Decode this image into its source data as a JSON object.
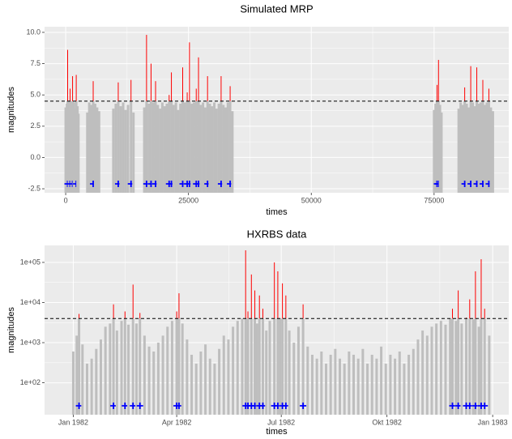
{
  "chart_data": [
    {
      "type": "bar",
      "title": "Simulated MRP",
      "x_label": "times",
      "y_label": "magnitudes",
      "x": [
        0,
        250,
        400,
        650,
        900,
        1150,
        1400,
        1650,
        1900,
        2150,
        2400,
        2600,
        4400,
        4800,
        5200,
        5600,
        6000,
        6400,
        6800,
        9700,
        10200,
        10700,
        11200,
        11700,
        12200,
        12700,
        13300,
        13800,
        16000,
        16460,
        16920,
        17380,
        17840,
        18300,
        18760,
        19220,
        19680,
        20140,
        20600,
        21060,
        21520,
        21980,
        22440,
        22900,
        23360,
        23820,
        24280,
        24740,
        25200,
        25660,
        26120,
        26580,
        27040,
        27500,
        27960,
        28420,
        28880,
        29340,
        29800,
        30260,
        30720,
        31180,
        31640,
        32100,
        32560,
        33020,
        33480,
        33940,
        75000,
        75300,
        75600,
        75900,
        76200,
        76500,
        80000,
        80410,
        80820,
        81230,
        81640,
        82050,
        82460,
        82870,
        83280,
        83690,
        84100,
        84510,
        84920,
        85330,
        85740,
        86150,
        86560,
        86970
      ],
      "values": [
        4.0,
        4.3,
        8.6,
        3.8,
        5.5,
        4.2,
        6.5,
        4.4,
        3.9,
        6.6,
        4.1,
        3.5,
        3.6,
        4.4,
        4.2,
        6.1,
        4.3,
        4.0,
        3.7,
        3.9,
        4.3,
        6.0,
        4.1,
        4.4,
        3.8,
        4.2,
        6.2,
        3.6,
        4.0,
        9.8,
        4.3,
        7.5,
        4.4,
        6.1,
        4.2,
        3.9,
        4.4,
        4.1,
        4.3,
        5.0,
        6.8,
        4.2,
        4.4,
        3.8,
        4.3,
        7.2,
        4.4,
        5.2,
        9.2,
        4.3,
        4.4,
        5.5,
        8.0,
        4.2,
        4.4,
        4.0,
        6.5,
        4.3,
        4.1,
        4.4,
        3.9,
        4.3,
        6.5,
        4.2,
        4.0,
        4.4,
        5.7,
        3.7,
        3.8,
        4.3,
        5.8,
        7.8,
        4.2,
        3.6,
        3.9,
        4.4,
        4.2,
        5.6,
        4.3,
        4.0,
        7.3,
        4.4,
        4.1,
        7.2,
        4.3,
        4.4,
        6.2,
        4.2,
        4.4,
        5.5,
        4.0,
        3.7
      ],
      "threshold": 4.5,
      "color": "#bebebe",
      "exceed_color": "#ff0000",
      "marker_color": "#0000ff",
      "log_y": false,
      "xlim": [
        -4300,
        90200
      ],
      "xticks": [
        0,
        25000,
        50000,
        75000
      ],
      "ylim": [
        -2.82,
        10.45
      ],
      "yticks": [
        {
          "value": -2.5,
          "label": "-2.5"
        },
        {
          "value": 0,
          "label": "0.0"
        },
        2.5,
        {
          "value": 5,
          "label": "5.0"
        },
        7.5,
        {
          "value": 10,
          "label": "10.0"
        }
      ]
    },
    {
      "type": "bar",
      "title": "HXRBS data",
      "x_label": "times",
      "y_label": "magnitudes",
      "x": [
        0,
        3,
        5,
        8,
        12,
        16,
        20,
        24,
        28,
        32,
        35,
        38,
        42,
        45,
        48,
        52,
        55,
        58,
        62,
        66,
        70,
        74,
        78,
        82,
        86,
        90,
        92,
        95,
        99,
        103,
        107,
        111,
        115,
        119,
        123,
        127,
        131,
        135,
        139,
        143,
        147,
        150,
        152,
        155,
        158,
        160,
        162,
        165,
        168,
        171,
        175,
        178,
        180,
        182,
        185,
        188,
        192,
        196,
        200,
        204,
        208,
        212,
        216,
        220,
        224,
        228,
        232,
        236,
        240,
        244,
        248,
        252,
        256,
        260,
        264,
        268,
        272,
        276,
        280,
        284,
        288,
        292,
        296,
        300,
        304,
        308,
        312,
        316,
        320,
        324,
        328,
        330,
        333,
        335,
        338,
        342,
        345,
        348,
        350,
        353,
        355,
        358,
        362
      ],
      "values": [
        600,
        1500,
        5200,
        900,
        300,
        400,
        700,
        1200,
        2500,
        3000,
        9000,
        2000,
        3500,
        6000,
        2800,
        28000,
        3000,
        5500,
        1500,
        800,
        600,
        1000,
        1500,
        2500,
        3500,
        6000,
        17000,
        3000,
        1200,
        500,
        300,
        600,
        900,
        400,
        300,
        700,
        1500,
        1200,
        2500,
        3500,
        4000,
        200000,
        6000,
        50000,
        20000,
        3000,
        15000,
        7000,
        2000,
        3500,
        100000,
        60000,
        4000,
        30000,
        15000,
        2000,
        1000,
        2500,
        9000,
        800,
        500,
        400,
        600,
        300,
        500,
        700,
        400,
        300,
        600,
        500,
        400,
        700,
        300,
        500,
        400,
        800,
        300,
        500,
        400,
        600,
        300,
        500,
        700,
        1200,
        2000,
        1500,
        2500,
        3000,
        3500,
        2800,
        4000,
        7000,
        3500,
        20000,
        3000,
        4200,
        12000,
        3800,
        60000,
        2500,
        120000,
        7000,
        1500
      ],
      "threshold": 4000,
      "color": "#bebebe",
      "exceed_color": "#ff0000",
      "marker_color": "#0000ff",
      "log_y": true,
      "xlim": [
        -25,
        379
      ],
      "xticks": [
        {
          "value": 0,
          "label": "Jan 1982"
        },
        {
          "value": 90,
          "label": "Apr 1982"
        },
        {
          "value": 181,
          "label": "Jul 1982"
        },
        {
          "value": 273,
          "label": "Okt 1982"
        },
        {
          "value": 365,
          "label": "Jan 1983"
        }
      ],
      "ylim": [
        16,
        265000
      ],
      "yticks": [
        {
          "value": 100,
          "label": "1e+02"
        },
        {
          "value": 1000,
          "label": "1e+03"
        },
        {
          "value": 10000,
          "label": "1e+04"
        },
        {
          "value": 100000,
          "label": "1e+05"
        }
      ]
    }
  ]
}
